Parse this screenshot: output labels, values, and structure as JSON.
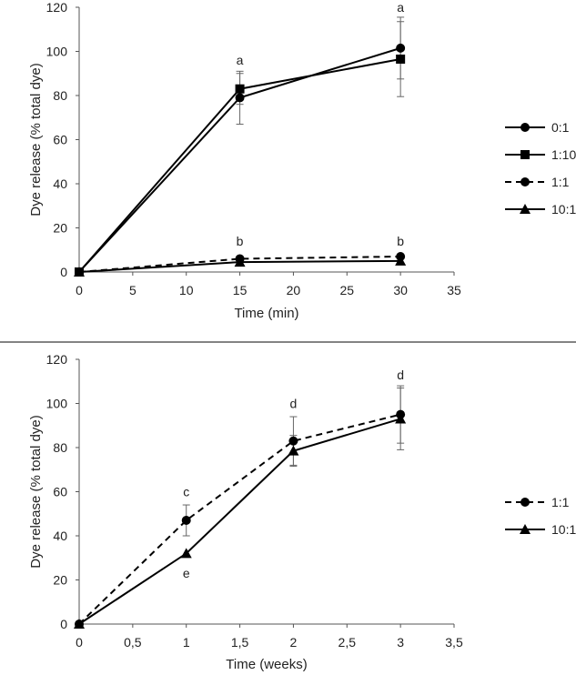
{
  "chart_data": [
    {
      "type": "line",
      "xlabel": "Time (min)",
      "ylabel": "Dye release (% total dye)",
      "xlim": [
        0,
        35
      ],
      "ylim": [
        0,
        120
      ],
      "xticks": [
        0,
        5,
        10,
        15,
        20,
        25,
        30,
        35
      ],
      "xtick_labels": [
        "0",
        "5",
        "10",
        "15",
        "20",
        "25",
        "30",
        "35"
      ],
      "yticks": [
        0,
        20,
        40,
        60,
        80,
        100,
        120
      ],
      "ytick_labels": [
        "0",
        "20",
        "40",
        "60",
        "80",
        "100",
        "120"
      ],
      "grid": false,
      "legend_position": "right",
      "x": [
        0,
        15,
        30
      ],
      "series": [
        {
          "name": "0:1",
          "marker": "circle",
          "dash": "solid",
          "values": [
            0,
            79,
            101.5
          ],
          "err": [
            0,
            12,
            14
          ]
        },
        {
          "name": "1:10",
          "marker": "square",
          "dash": "solid",
          "values": [
            0,
            83,
            96.5
          ],
          "err": [
            0,
            7,
            17
          ]
        },
        {
          "name": "1:1",
          "marker": "circle",
          "dash": "dashed",
          "values": [
            0,
            6,
            7
          ],
          "err": [
            0,
            0,
            0
          ]
        },
        {
          "name": "10:1",
          "marker": "triangle",
          "dash": "solid",
          "values": [
            0,
            4.5,
            5
          ],
          "err": [
            0,
            0,
            0
          ]
        }
      ],
      "annotations": [
        {
          "text": "a",
          "x": 15,
          "y": 94
        },
        {
          "text": "a",
          "x": 30,
          "y": 118
        },
        {
          "text": "b",
          "x": 15,
          "y": 12
        },
        {
          "text": "b",
          "x": 30,
          "y": 12
        }
      ]
    },
    {
      "type": "line",
      "xlabel": "Time (weeks)",
      "ylabel": "Dye release (% total dye)",
      "xlim": [
        0,
        3.5
      ],
      "ylim": [
        0,
        120
      ],
      "xticks": [
        0,
        0.5,
        1,
        1.5,
        2,
        2.5,
        3,
        3.5
      ],
      "xtick_labels": [
        "0",
        "0,5",
        "1",
        "1,5",
        "2",
        "2,5",
        "3",
        "3,5"
      ],
      "yticks": [
        0,
        20,
        40,
        60,
        80,
        100,
        120
      ],
      "ytick_labels": [
        "0",
        "20",
        "40",
        "60",
        "80",
        "100",
        "120"
      ],
      "grid": false,
      "legend_position": "right",
      "x": [
        0,
        1,
        2,
        3
      ],
      "series": [
        {
          "name": "1:1",
          "marker": "circle",
          "dash": "dashed",
          "values": [
            0,
            47,
            83,
            95
          ],
          "err": [
            0,
            7,
            11,
            13
          ]
        },
        {
          "name": "10:1",
          "marker": "triangle",
          "dash": "solid",
          "values": [
            0,
            32,
            78.5,
            93
          ],
          "err": [
            0,
            0,
            7,
            14
          ]
        }
      ],
      "annotations": [
        {
          "text": "c",
          "x": 1,
          "y": 58
        },
        {
          "text": "e",
          "x": 1,
          "y": 21
        },
        {
          "text": "d",
          "x": 2,
          "y": 98
        },
        {
          "text": "d",
          "x": 3,
          "y": 111
        }
      ]
    }
  ]
}
